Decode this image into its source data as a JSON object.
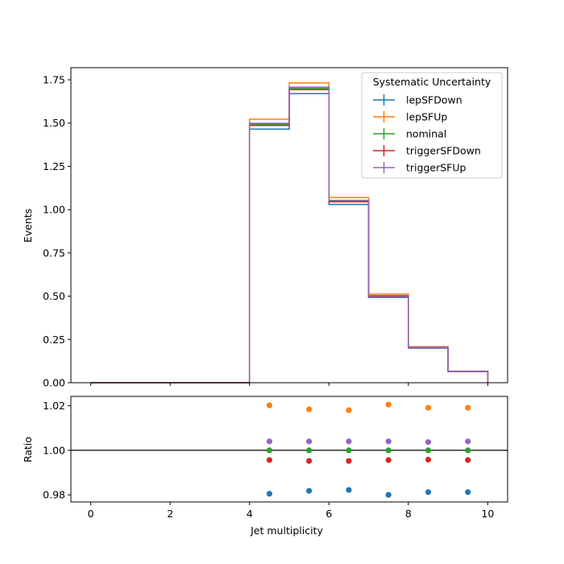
{
  "chart_data": [
    {
      "type": "line",
      "subtype": "step-histogram",
      "title": "",
      "xlabel": "",
      "ylabel": "Events",
      "xlim": [
        -0.5,
        10.5
      ],
      "ylim": [
        0,
        1.82
      ],
      "bin_edges": [
        0,
        1,
        2,
        3,
        4,
        5,
        6,
        7,
        8,
        9,
        10
      ],
      "xticks": [
        0,
        2,
        4,
        6,
        8,
        10
      ],
      "xtick_labels_shown": false,
      "yticks": [
        0.0,
        0.25,
        0.5,
        0.75,
        1.0,
        1.25,
        1.5,
        1.75
      ],
      "ytick_labels": [
        "0.00",
        "0.25",
        "0.50",
        "0.75",
        "1.00",
        "1.25",
        "1.50",
        "1.75"
      ],
      "legend": {
        "title": "Systematic Uncertainty",
        "position": "top-right"
      },
      "series": [
        {
          "name": "lepSFDown",
          "color": "#1f77b4",
          "values": [
            0,
            0,
            0,
            0,
            1.465,
            1.67,
            1.03,
            0.493,
            0.2,
            0.064
          ]
        },
        {
          "name": "lepSFUp",
          "color": "#ff7f0e",
          "values": [
            0,
            0,
            0,
            0,
            1.522,
            1.732,
            1.07,
            0.512,
            0.208,
            0.067
          ]
        },
        {
          "name": "nominal",
          "color": "#2ca02c",
          "values": [
            0,
            0,
            0,
            0,
            1.493,
            1.701,
            1.05,
            0.502,
            0.204,
            0.066
          ]
        },
        {
          "name": "triggerSFDown",
          "color": "#d62728",
          "values": [
            0,
            0,
            0,
            0,
            1.486,
            1.693,
            1.045,
            0.5,
            0.203,
            0.065
          ]
        },
        {
          "name": "triggerSFUp",
          "color": "#9467bd",
          "values": [
            0,
            0,
            0,
            0,
            1.499,
            1.708,
            1.054,
            0.504,
            0.205,
            0.066
          ]
        }
      ]
    },
    {
      "type": "scatter",
      "title": "",
      "xlabel": "Jet multiplicity",
      "ylabel": "Ratio",
      "xlim": [
        -0.5,
        10.5
      ],
      "ylim": [
        0.9768,
        1.0242
      ],
      "xticks": [
        0,
        2,
        4,
        6,
        8,
        10
      ],
      "xtick_labels": [
        "0",
        "2",
        "4",
        "6",
        "8",
        "10"
      ],
      "yticks": [
        0.98,
        1.0,
        1.02
      ],
      "ytick_labels": [
        "0.98",
        "1.00",
        "1.02"
      ],
      "reference_line": 1.0,
      "x": [
        4.5,
        5.5,
        6.5,
        7.5,
        8.5,
        9.5
      ],
      "series": [
        {
          "name": "lepSFDown",
          "color": "#1f77b4",
          "values": [
            0.9805,
            0.9818,
            0.9822,
            0.98,
            0.9812,
            0.9812
          ]
        },
        {
          "name": "lepSFUp",
          "color": "#ff7f0e",
          "values": [
            1.0202,
            1.0184,
            1.018,
            1.0205,
            1.0191,
            1.0191
          ]
        },
        {
          "name": "nominal",
          "color": "#2ca02c",
          "values": [
            1.0,
            1.0,
            1.0,
            1.0,
            1.0,
            1.0
          ]
        },
        {
          "name": "triggerSFDown",
          "color": "#d62728",
          "values": [
            0.9956,
            0.9952,
            0.9952,
            0.9956,
            0.9958,
            0.9956
          ]
        },
        {
          "name": "triggerSFUp",
          "color": "#9467bd",
          "values": [
            1.004,
            1.004,
            1.004,
            1.004,
            1.0037,
            1.004
          ]
        }
      ]
    }
  ]
}
